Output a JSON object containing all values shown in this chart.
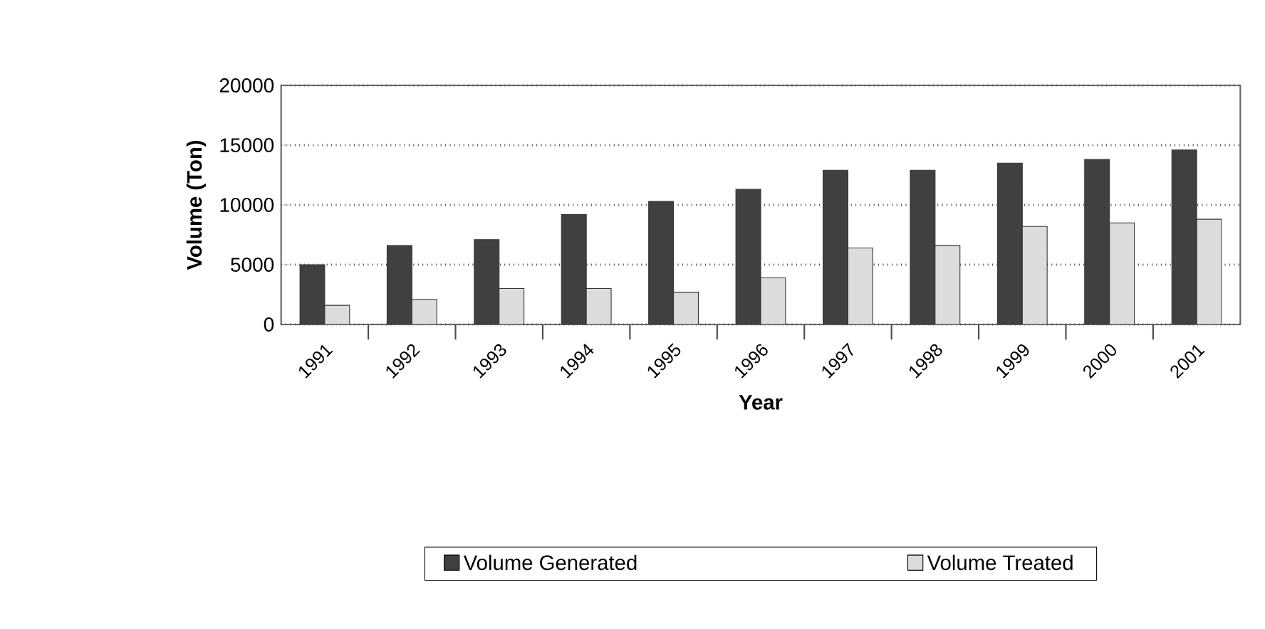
{
  "chart_data": {
    "type": "bar",
    "xlabel": "Year",
    "ylabel": "Volume (Ton)",
    "categories": [
      "1991",
      "1992",
      "1993",
      "1994",
      "1995",
      "1996",
      "1997",
      "1998",
      "1999",
      "2000",
      "2001"
    ],
    "series": [
      {
        "name": "Volume Generated",
        "color": "#404040",
        "values": [
          5000,
          6600,
          7100,
          9200,
          10300,
          11300,
          12900,
          12900,
          13500,
          13800,
          14600
        ]
      },
      {
        "name": "Volume Treated",
        "color": "#dcdcdc",
        "values": [
          1600,
          2100,
          3000,
          3000,
          2700,
          3900,
          6400,
          6600,
          8200,
          8500,
          8800
        ]
      }
    ],
    "ylim": [
      0,
      20000
    ],
    "yticks": [
      0,
      5000,
      10000,
      15000,
      20000
    ],
    "grid": "y",
    "legend": "bottom"
  }
}
